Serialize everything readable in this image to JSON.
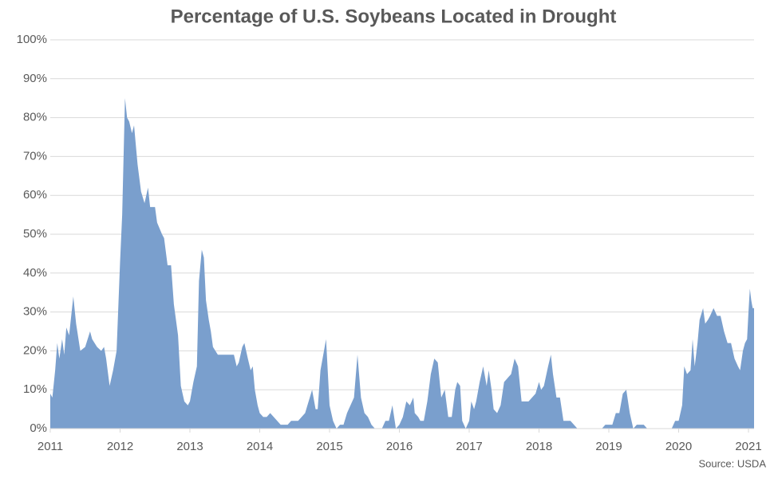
{
  "chart_data": {
    "type": "area",
    "title": "Percentage of U.S. Soybeans Located in Drought",
    "source": "Source: USDA",
    "color": "#7a9fcd",
    "grid": true,
    "x": [
      2011.0,
      2011.03,
      2011.07,
      2011.1,
      2011.13,
      2011.17,
      2011.2,
      2011.23,
      2011.27,
      2011.33,
      2011.37,
      2011.43,
      2011.5,
      2011.57,
      2011.6,
      2011.67,
      2011.73,
      2011.77,
      2011.8,
      2011.85,
      2011.9,
      2011.95,
      2012.0,
      2012.03,
      2012.07,
      2012.1,
      2012.13,
      2012.17,
      2012.2,
      2012.25,
      2012.3,
      2012.35,
      2012.4,
      2012.43,
      2012.5,
      2012.53,
      2012.6,
      2012.63,
      2012.68,
      2012.73,
      2012.77,
      2012.83,
      2012.87,
      2012.92,
      2012.97,
      2013.0,
      2013.05,
      2013.1,
      2013.13,
      2013.17,
      2013.2,
      2013.23,
      2013.27,
      2013.3,
      2013.33,
      2013.4,
      2013.5,
      2013.57,
      2013.63,
      2013.67,
      2013.7,
      2013.75,
      2013.78,
      2013.83,
      2013.87,
      2013.9,
      2013.93,
      2013.97,
      2014.0,
      2014.05,
      2014.1,
      2014.15,
      2014.2,
      2014.25,
      2014.3,
      2014.4,
      2014.45,
      2014.55,
      2014.6,
      2014.65,
      2014.7,
      2014.75,
      2014.8,
      2014.83,
      2014.87,
      2014.92,
      2014.95,
      2015.0,
      2015.05,
      2015.1,
      2015.15,
      2015.2,
      2015.25,
      2015.3,
      2015.35,
      2015.4,
      2015.45,
      2015.5,
      2015.55,
      2015.6,
      2015.65,
      2015.75,
      2015.8,
      2015.85,
      2015.9,
      2015.95,
      2016.0,
      2016.05,
      2016.1,
      2016.15,
      2016.2,
      2016.22,
      2016.27,
      2016.3,
      2016.35,
      2016.4,
      2016.45,
      2016.5,
      2016.55,
      2016.6,
      2016.65,
      2016.7,
      2016.75,
      2016.8,
      2016.83,
      2016.87,
      2016.9,
      2016.95,
      2017.0,
      2017.03,
      2017.07,
      2017.1,
      2017.15,
      2017.2,
      2017.25,
      2017.28,
      2017.32,
      2017.35,
      2017.4,
      2017.45,
      2017.5,
      2017.55,
      2017.6,
      2017.65,
      2017.7,
      2017.75,
      2017.8,
      2017.85,
      2017.9,
      2017.95,
      2018.0,
      2018.03,
      2018.07,
      2018.13,
      2018.17,
      2018.2,
      2018.25,
      2018.3,
      2018.35,
      2018.4,
      2018.45,
      2018.5,
      2018.55,
      2018.9,
      2018.95,
      2019.05,
      2019.1,
      2019.15,
      2019.2,
      2019.25,
      2019.3,
      2019.35,
      2019.4,
      2019.5,
      2019.55,
      2019.9,
      2019.95,
      2020.0,
      2020.05,
      2020.08,
      2020.12,
      2020.17,
      2020.2,
      2020.23,
      2020.27,
      2020.3,
      2020.35,
      2020.38,
      2020.42,
      2020.45,
      2020.5,
      2020.55,
      2020.6,
      2020.65,
      2020.7,
      2020.75,
      2020.8,
      2020.85,
      2020.88,
      2020.92,
      2020.95,
      2020.98,
      2021.0,
      2021.02,
      2021.04,
      2021.06,
      2021.08
    ],
    "values": [
      9,
      8,
      15,
      22,
      18,
      23,
      19,
      26,
      24,
      34,
      27,
      20,
      21,
      25,
      23,
      21,
      20,
      21,
      18,
      11,
      15,
      20,
      43,
      55,
      85,
      80,
      79,
      76,
      78,
      68,
      61,
      58,
      62,
      57,
      57,
      53,
      50,
      49,
      42,
      42,
      32,
      24,
      11,
      7,
      6,
      7,
      12,
      16,
      38,
      46,
      44,
      33,
      28,
      25,
      21,
      19,
      19,
      19,
      19,
      16,
      17,
      21,
      22,
      18,
      15,
      16,
      10,
      6,
      4,
      3,
      3,
      4,
      3,
      2,
      1,
      1,
      2,
      2,
      3,
      4,
      7,
      10,
      5,
      5,
      15,
      20,
      23,
      6,
      2,
      0,
      1,
      1,
      4,
      6,
      8,
      19,
      8,
      4,
      3,
      1,
      0,
      0,
      2,
      2,
      6,
      0,
      1,
      3,
      7,
      6,
      8,
      4,
      3,
      2,
      2,
      7,
      14,
      18,
      17,
      8,
      10,
      3,
      3,
      10,
      12,
      11,
      2,
      0,
      2,
      7,
      5,
      7,
      12,
      16,
      11,
      15,
      10,
      5,
      4,
      6,
      12,
      13,
      14,
      18,
      16,
      7,
      7,
      7,
      8,
      9,
      12,
      10,
      11,
      16,
      19,
      14,
      8,
      8,
      2,
      2,
      2,
      1,
      0,
      0,
      1,
      1,
      4,
      4,
      9,
      10,
      4,
      0,
      1,
      1,
      0,
      0,
      2,
      2,
      6,
      16,
      14,
      15,
      23,
      16,
      22,
      28,
      31,
      27,
      28,
      29,
      31,
      29,
      29,
      25,
      22,
      22,
      18,
      16,
      15,
      20,
      22,
      23,
      30,
      36,
      33,
      31,
      31
    ],
    "xlim": [
      2011,
      2021.08
    ],
    "xticks": [
      2011,
      2012,
      2013,
      2014,
      2015,
      2016,
      2017,
      2018,
      2019,
      2020,
      2021
    ],
    "ylim": [
      0,
      100
    ],
    "yticks": [
      {
        "value": 0,
        "label": "0%"
      },
      {
        "value": 10,
        "label": "10%"
      },
      {
        "value": 20,
        "label": "20%"
      },
      {
        "value": 30,
        "label": "30%"
      },
      {
        "value": 40,
        "label": "40%"
      },
      {
        "value": 50,
        "label": "50%"
      },
      {
        "value": 60,
        "label": "60%"
      },
      {
        "value": 70,
        "label": "70%"
      },
      {
        "value": 80,
        "label": "80%"
      },
      {
        "value": 90,
        "label": "90%"
      },
      {
        "value": 100,
        "label": "100%"
      }
    ]
  }
}
